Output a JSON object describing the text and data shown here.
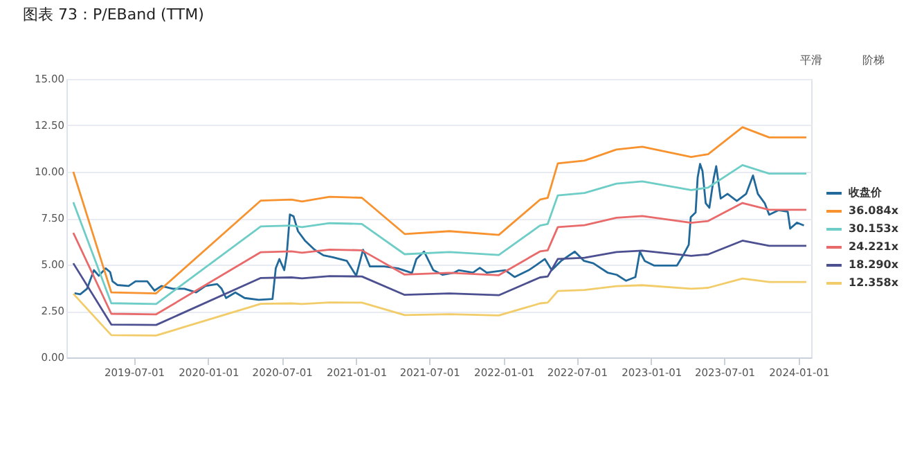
{
  "chart_data": {
    "type": "line",
    "title": "图表 73：P/EBand (TTM)",
    "x": [
      "2019-02-01",
      "2019-05-06",
      "2019-08-25",
      "2020-05-10",
      "2020-07-25",
      "2020-08-20",
      "2020-10-27",
      "2021-01-15",
      "2021-05-01",
      "2021-08-20",
      "2021-12-20",
      "2022-04-01",
      "2022-04-20",
      "2022-05-15",
      "2022-07-20",
      "2022-10-07",
      "2022-12-10",
      "2023-04-10",
      "2023-05-22",
      "2023-08-15",
      "2023-10-20",
      "2024-01-20"
    ],
    "xlim": [
      "2019-01-15",
      "2024-02-01"
    ],
    "xticks": [
      "2019-07-01",
      "2020-01-01",
      "2020-07-01",
      "2021-01-01",
      "2021-07-01",
      "2022-01-01",
      "2022-07-01",
      "2023-01-01",
      "2023-07-01",
      "2024-01-01"
    ],
    "ylim": [
      0,
      15
    ],
    "yticks": [
      {
        "value": 0,
        "label": "0.00"
      },
      {
        "value": 2.5,
        "label": "2.50"
      },
      {
        "value": 5,
        "label": "5.00"
      },
      {
        "value": 7.5,
        "label": "7.50"
      },
      {
        "value": 10,
        "label": "10.00"
      },
      {
        "value": 12.5,
        "label": "12.50"
      },
      {
        "value": 15,
        "label": "15.00"
      }
    ],
    "grid": "y",
    "legend": "right",
    "marker": "none",
    "line_style": "solid",
    "annotations": [
      "平滑",
      "阶梯"
    ],
    "series": [
      {
        "name": "收盘价",
        "color": "#20699a",
        "x": [
          "2019-02-04",
          "2019-02-18",
          "2019-03-07",
          "2019-03-24",
          "2019-04-05",
          "2019-04-22",
          "2019-05-03",
          "2019-05-09",
          "2019-05-21",
          "2019-06-18",
          "2019-07-05",
          "2019-08-03",
          "2019-08-21",
          "2019-09-07",
          "2019-10-05",
          "2019-11-03",
          "2019-12-02",
          "2019-12-25",
          "2020-01-23",
          "2020-02-03",
          "2020-02-14",
          "2020-03-08",
          "2020-03-31",
          "2020-05-05",
          "2020-06-08",
          "2020-06-16",
          "2020-06-25",
          "2020-07-07",
          "2020-07-13",
          "2020-07-21",
          "2020-07-30",
          "2020-08-10",
          "2020-08-27",
          "2020-09-20",
          "2020-10-12",
          "2020-11-04",
          "2020-12-09",
          "2021-01-01",
          "2021-01-18",
          "2021-02-04",
          "2021-03-11",
          "2021-04-14",
          "2021-05-19",
          "2021-05-30",
          "2021-06-18",
          "2021-07-11",
          "2021-08-03",
          "2021-09-01",
          "2021-09-12",
          "2021-10-17",
          "2021-11-03",
          "2021-11-20",
          "2022-01-05",
          "2022-01-28",
          "2022-03-04",
          "2022-03-21",
          "2022-04-13",
          "2022-04-30",
          "2022-05-23",
          "2022-06-26",
          "2022-07-19",
          "2022-08-11",
          "2022-09-15",
          "2022-10-08",
          "2022-10-31",
          "2022-11-23",
          "2022-12-04",
          "2022-12-16",
          "2023-01-08",
          "2023-02-11",
          "2023-03-06",
          "2023-03-23",
          "2023-04-04",
          "2023-04-09",
          "2023-04-21",
          "2023-04-26",
          "2023-05-02",
          "2023-05-08",
          "2023-05-16",
          "2023-05-25",
          "2023-06-05",
          "2023-06-11",
          "2023-06-22",
          "2023-07-09",
          "2023-08-01",
          "2023-08-24",
          "2023-09-10",
          "2023-09-22",
          "2023-10-09",
          "2023-10-20",
          "2023-11-12",
          "2023-12-05",
          "2023-12-11",
          "2023-12-28",
          "2024-01-14"
        ],
        "values": [
          3.46,
          3.4,
          3.7,
          4.7,
          4.4,
          4.8,
          4.6,
          4.1,
          3.9,
          3.85,
          4.1,
          4.1,
          3.6,
          3.85,
          3.7,
          3.7,
          3.5,
          3.85,
          3.95,
          3.7,
          3.2,
          3.5,
          3.2,
          3.1,
          3.15,
          4.8,
          5.3,
          4.7,
          5.5,
          7.7,
          7.6,
          6.8,
          6.3,
          5.8,
          5.5,
          5.4,
          5.2,
          4.4,
          5.8,
          4.9,
          4.9,
          4.8,
          4.55,
          5.3,
          5.7,
          4.7,
          4.45,
          4.57,
          4.7,
          4.57,
          4.83,
          4.57,
          4.7,
          4.33,
          4.7,
          4.95,
          5.3,
          4.7,
          5.2,
          5.7,
          5.2,
          5.07,
          4.57,
          4.45,
          4.13,
          4.33,
          5.7,
          5.2,
          4.95,
          4.95,
          4.95,
          5.57,
          6.07,
          7.56,
          7.81,
          9.68,
          10.42,
          10.05,
          8.31,
          8.06,
          9.68,
          10.3,
          8.56,
          8.81,
          8.43,
          8.81,
          9.8,
          8.81,
          8.31,
          7.69,
          7.93,
          7.85,
          6.94,
          7.26,
          7.11
        ]
      },
      {
        "name": "36.084x",
        "color": "#f7922e",
        "values": [
          10.0,
          3.5,
          3.45,
          8.45,
          8.5,
          8.4,
          8.65,
          8.6,
          6.65,
          6.8,
          6.6,
          8.5,
          8.6,
          10.45,
          10.6,
          11.2,
          11.35,
          10.8,
          10.95,
          12.4,
          11.85,
          11.85
        ]
      },
      {
        "name": "30.153x",
        "color": "#6ecdc6",
        "values": [
          8.36,
          2.92,
          2.88,
          7.06,
          7.1,
          7.02,
          7.23,
          7.19,
          5.56,
          5.68,
          5.52,
          7.1,
          7.19,
          8.73,
          8.86,
          9.36,
          9.48,
          9.02,
          9.15,
          10.36,
          9.9,
          9.9
        ]
      },
      {
        "name": "24.221x",
        "color": "#e96a6b",
        "values": [
          6.71,
          2.35,
          2.32,
          5.67,
          5.71,
          5.64,
          5.81,
          5.77,
          4.46,
          4.56,
          4.43,
          5.71,
          5.77,
          7.02,
          7.12,
          7.52,
          7.62,
          7.25,
          7.35,
          8.32,
          7.95,
          7.95
        ]
      },
      {
        "name": "18.290x",
        "color": "#4d5090",
        "values": [
          5.07,
          1.77,
          1.75,
          4.28,
          4.31,
          4.26,
          4.38,
          4.36,
          3.37,
          3.45,
          3.35,
          4.31,
          4.36,
          5.3,
          5.37,
          5.68,
          5.75,
          5.47,
          5.55,
          6.29,
          6.01,
          6.01
        ]
      },
      {
        "name": "12.358x",
        "color": "#f1cc68",
        "values": [
          3.43,
          1.2,
          1.18,
          2.89,
          2.91,
          2.88,
          2.96,
          2.95,
          2.28,
          2.33,
          2.26,
          2.91,
          2.95,
          3.58,
          3.63,
          3.84,
          3.89,
          3.7,
          3.75,
          4.25,
          4.06,
          4.06
        ]
      }
    ]
  }
}
